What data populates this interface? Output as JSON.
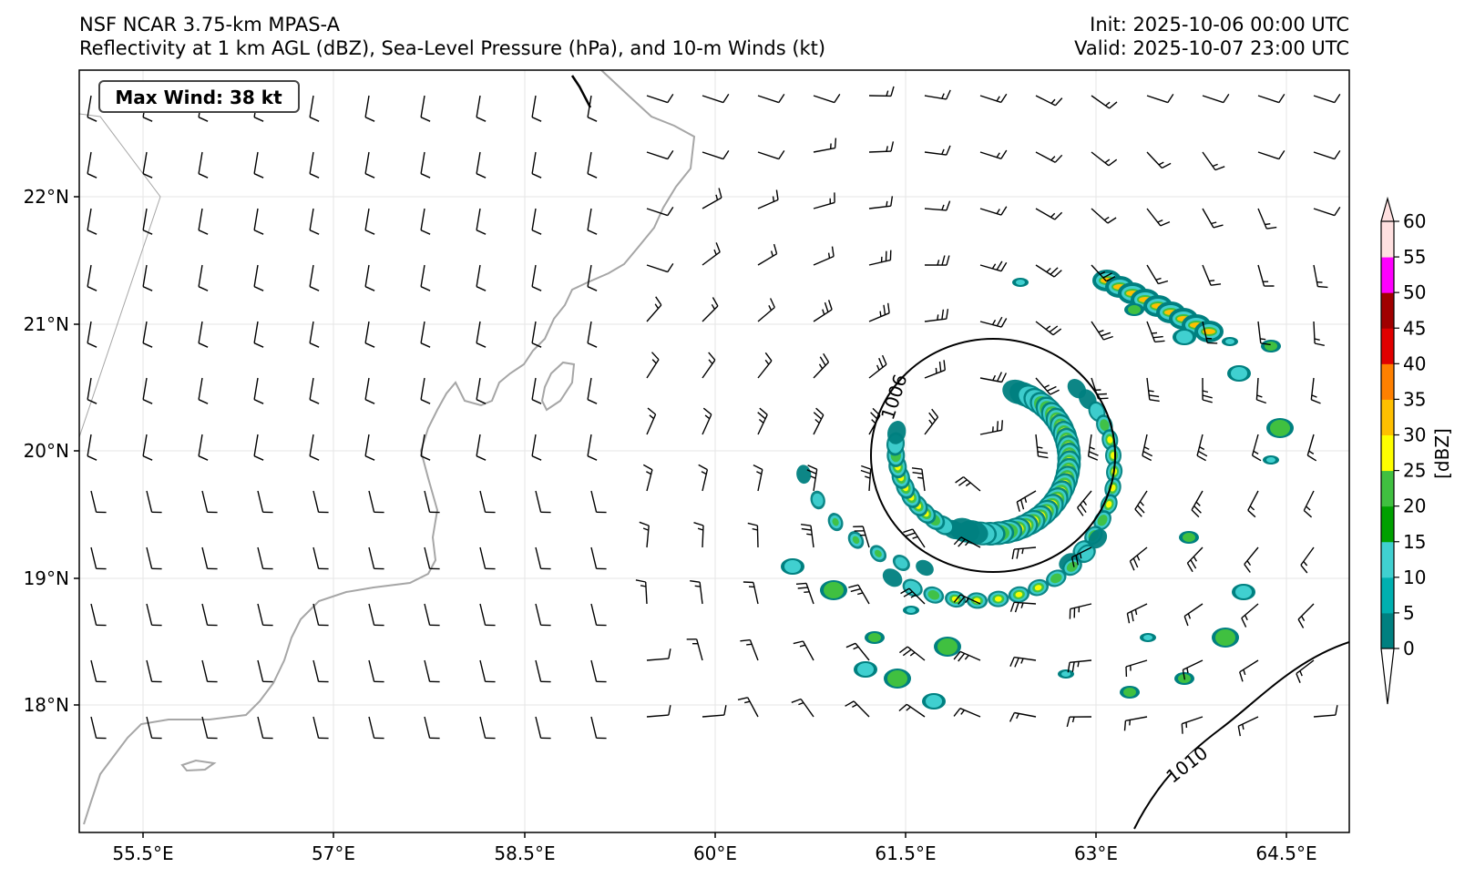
{
  "header": {
    "title_line1": "NSF NCAR 3.75-km MPAS-A",
    "title_line2": "Reflectivity at 1 km AGL (dBZ), Sea-Level Pressure (hPa), and 10-m Winds (kt)",
    "init": "Init: 2025-10-06 00:00 UTC",
    "valid": "Valid: 2025-10-07 23:00 UTC"
  },
  "max_wind_label": "Max Wind: 38 kt",
  "map": {
    "lon_range": [
      54.8,
      65.2
    ],
    "lat_range": [
      17.0,
      23.0
    ],
    "lon_ticks": [
      "55.5°E",
      "57°E",
      "58.5°E",
      "60°E",
      "61.5°E",
      "63°E",
      "64.5°E"
    ],
    "lat_ticks": [
      "18°N",
      "19°N",
      "20°N",
      "21°N",
      "22°N"
    ],
    "coastline_color": "#a6a6a6",
    "storm_center": {
      "lon": 62.2,
      "lat": 20.0
    }
  },
  "isobars": [
    {
      "label": "1006",
      "unit": "hPa"
    },
    {
      "label": "1010",
      "unit": "hPa"
    }
  ],
  "colorbar": {
    "unit_label": "[dBZ]",
    "ticks": [
      "0",
      "5",
      "10",
      "15",
      "20",
      "25",
      "30",
      "35",
      "40",
      "45",
      "50",
      "55",
      "60"
    ],
    "colors": [
      "#008080",
      "#00b0b0",
      "#40d0d0",
      "#00a000",
      "#40c040",
      "#ffff00",
      "#ffc000",
      "#ff8000",
      "#e00000",
      "#a00000",
      "#ff00ff",
      "#ffe0e0"
    ]
  }
}
